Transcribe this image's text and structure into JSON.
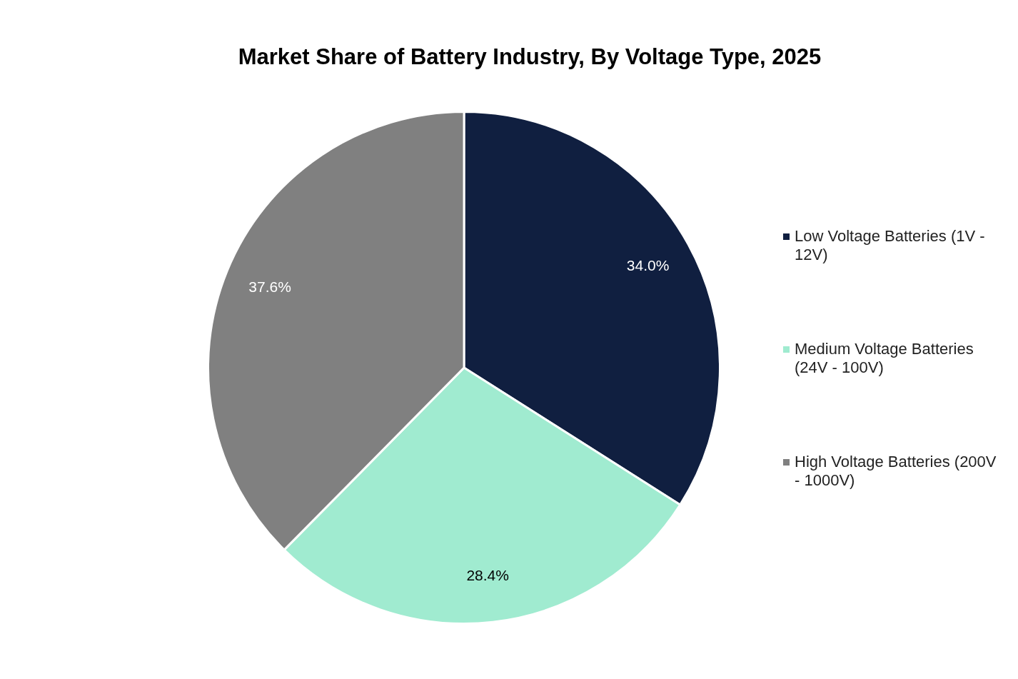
{
  "chart_data": {
    "type": "pie",
    "title": "Market Share of Battery Industry, By Voltage Type, 2025",
    "categories": [
      "Low Voltage Batteries (1V - 12V)",
      "Medium Voltage Batteries (24V - 100V)",
      "High Voltage Batteries (200V - 1000V)"
    ],
    "values": [
      34.0,
      28.4,
      37.6
    ],
    "colors": [
      "#101f40",
      "#a0ebd0",
      "#808080"
    ],
    "value_labels": [
      "34.0%",
      "28.4%",
      "37.6%"
    ],
    "legend": "right"
  }
}
